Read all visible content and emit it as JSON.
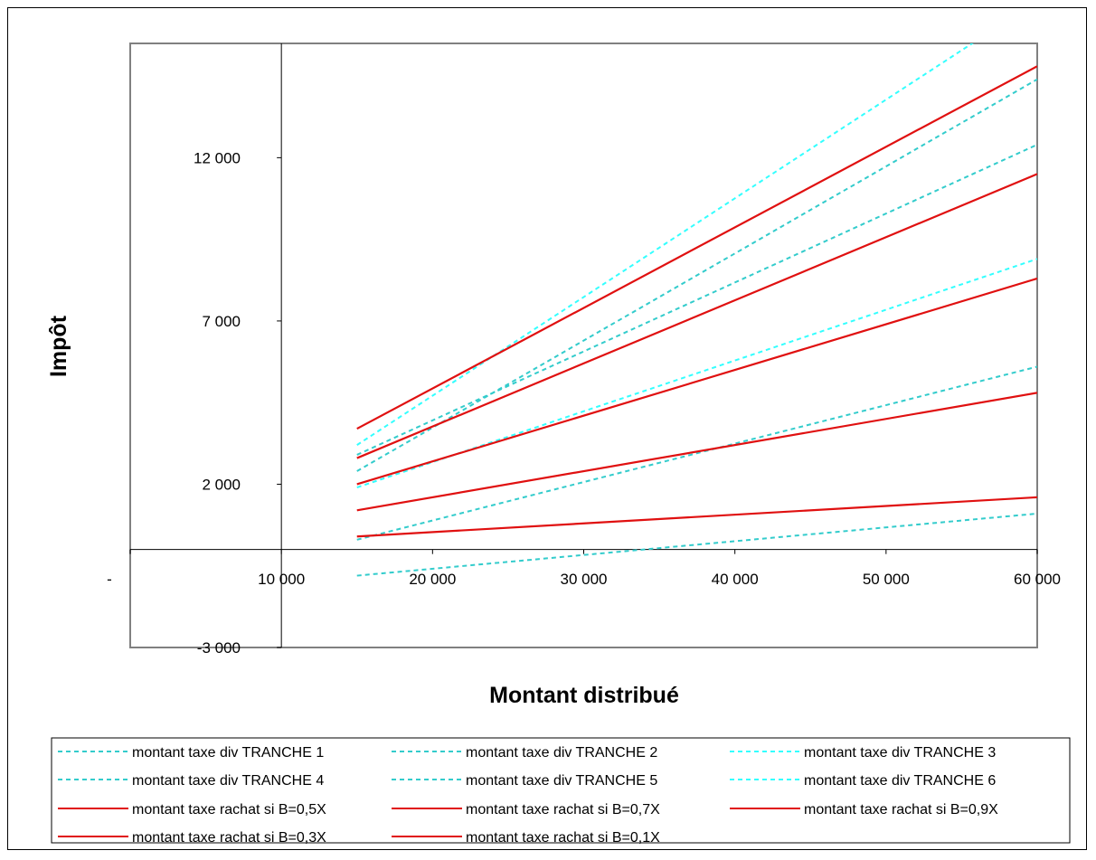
{
  "chart_data": {
    "type": "line",
    "title": "",
    "xlabel": "Montant distribué",
    "ylabel": "Impôt",
    "xlim": [
      0,
      60000
    ],
    "ylim": [
      -3000,
      15500
    ],
    "grid": false,
    "legend_position": "bottom",
    "x_ticks": [
      {
        "value": 0,
        "label": "-"
      },
      {
        "value": 10000,
        "label": "10 000"
      },
      {
        "value": 20000,
        "label": "20 000"
      },
      {
        "value": 30000,
        "label": "30 000"
      },
      {
        "value": 40000,
        "label": "40 000"
      },
      {
        "value": 50000,
        "label": "50 000"
      },
      {
        "value": 60000,
        "label": "60 000"
      }
    ],
    "y_ticks": [
      {
        "value": -3000,
        "label": "-3 000"
      },
      {
        "value": 2000,
        "label": "2 000"
      },
      {
        "value": 7000,
        "label": "7 000"
      },
      {
        "value": 12000,
        "label": "12 000"
      }
    ],
    "x": [
      15000,
      60000
    ],
    "series": [
      {
        "name": "montant taxe div TRANCHE 1",
        "style": "dashed",
        "color": "#33CCCC",
        "values": [
          -800,
          1100
        ]
      },
      {
        "name": "montant taxe div TRANCHE 2",
        "style": "dashed",
        "color": "#33CCCC",
        "values": [
          300,
          5600
        ]
      },
      {
        "name": "montant taxe div TRANCHE 3",
        "style": "dashed",
        "color": "#33FFFF",
        "values": [
          1900,
          8900
        ]
      },
      {
        "name": "montant taxe div TRANCHE 4",
        "style": "dashed",
        "color": "#33CCCC",
        "values": [
          2900,
          12400
        ]
      },
      {
        "name": "montant taxe div TRANCHE 5",
        "style": "dashed",
        "color": "#33CCCC",
        "values": [
          2400,
          14400
        ]
      },
      {
        "name": "montant taxe div TRANCHE 6",
        "style": "dashed",
        "color": "#33FFFF",
        "values": [
          3200,
          16800
        ]
      },
      {
        "name": "montant taxe rachat si B=0,5X",
        "style": "solid",
        "color": "#E01010",
        "values": [
          3700,
          14800
        ]
      },
      {
        "name": "montant taxe rachat si B=0,7X",
        "style": "solid",
        "color": "#E01010",
        "values": [
          2800,
          11500
        ]
      },
      {
        "name": "montant taxe rachat si B=0,9X",
        "style": "solid",
        "color": "#E01010",
        "values": [
          2000,
          8300
        ]
      },
      {
        "name": "montant taxe rachat si B=0,3X",
        "style": "solid",
        "color": "#E01010",
        "values": [
          1200,
          4800
        ]
      },
      {
        "name": "montant taxe rachat si B=0,1X",
        "style": "solid",
        "color": "#E01010",
        "values": [
          400,
          1600
        ]
      }
    ]
  }
}
